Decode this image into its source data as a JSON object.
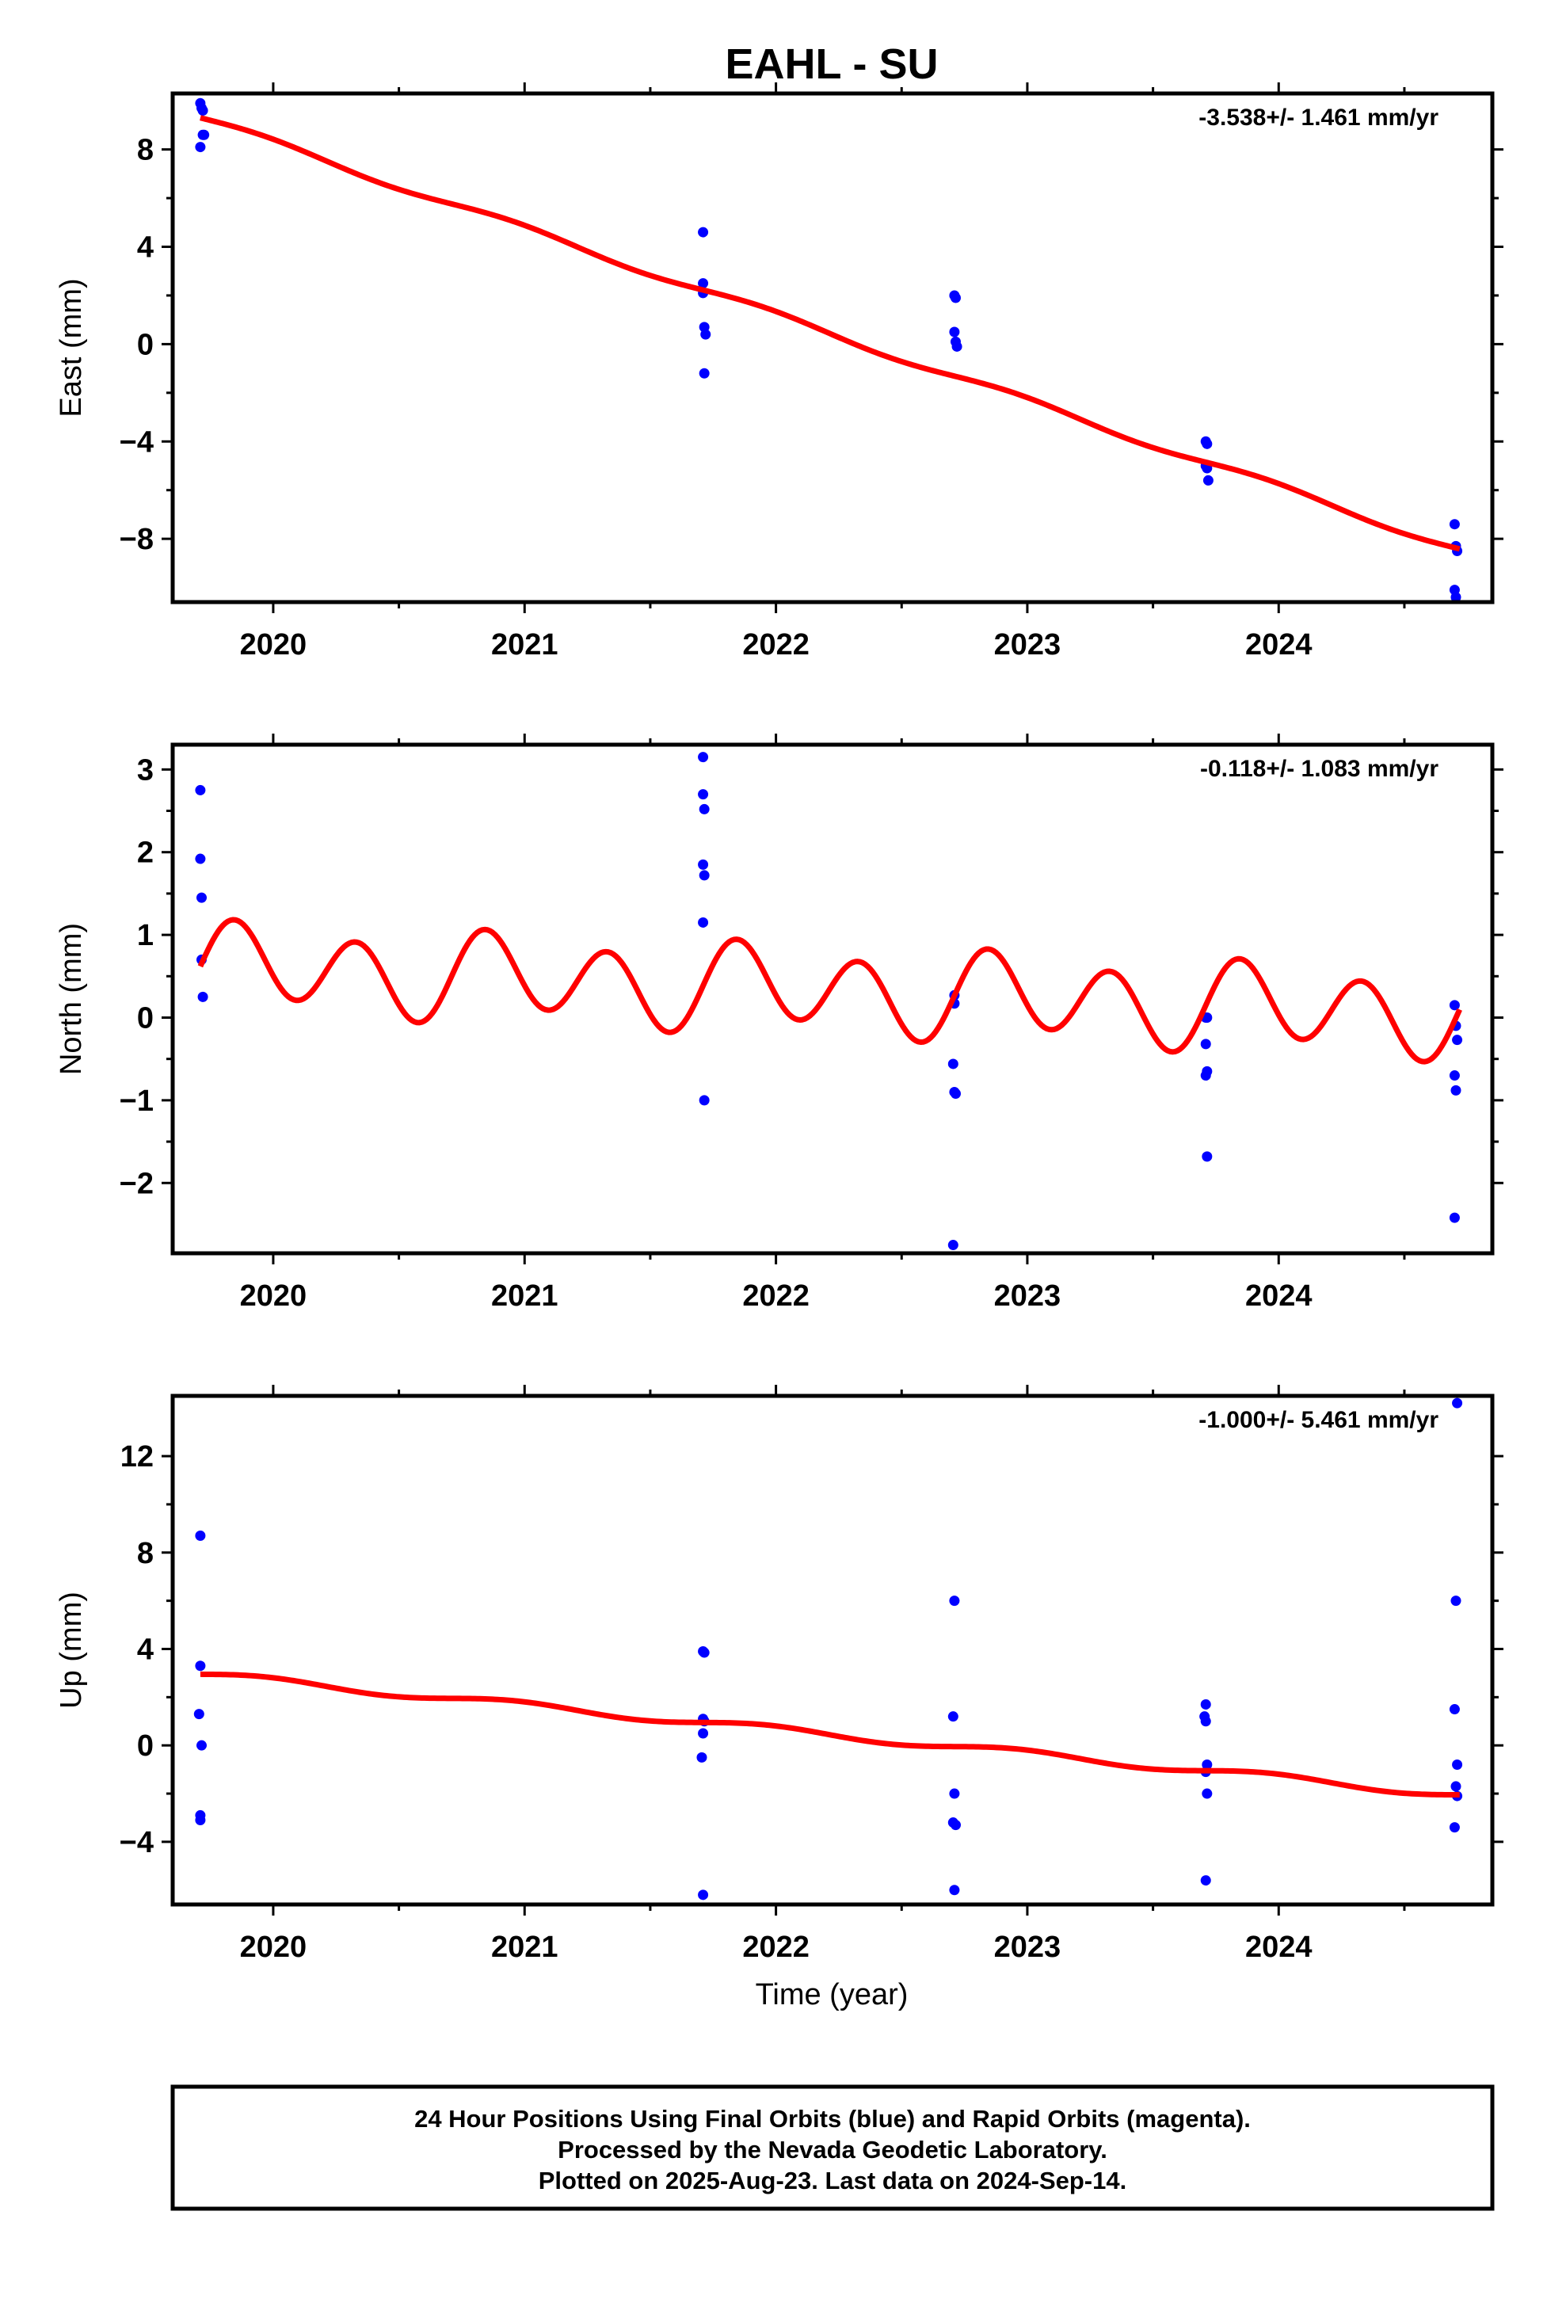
{
  "title": "EAHL - SU",
  "xlabel": "Time (year)",
  "footer": [
    "24 Hour Positions Using Final Orbits (blue) and Rapid Orbits (magenta).",
    "Processed by the Nevada Geodetic Laboratory.",
    "Plotted on 2025-Aug-23. Last data on 2024-Sep-14."
  ],
  "colors": {
    "final_orbits": "#0000ff",
    "rapid_orbits": "#ff00ff",
    "model": "#ff0000"
  },
  "chart_data": [
    {
      "type": "scatter",
      "ylabel": "East (mm)",
      "rate": "-3.538+/- 1.461 mm/yr",
      "xlim": [
        2019.6,
        2024.85
      ],
      "ylim": [
        -10.6,
        10.3
      ],
      "xticks": [
        2020,
        2021,
        2022,
        2023,
        2024
      ],
      "yticks": [
        -8,
        -4,
        0,
        4,
        8
      ],
      "ytick_labels": [
        "−8",
        "−4",
        "0",
        "4",
        "8"
      ],
      "points": [
        [
          2019.71,
          9.9
        ],
        [
          2019.715,
          9.7
        ],
        [
          2019.72,
          9.6
        ],
        [
          2019.71,
          8.1
        ],
        [
          2019.72,
          8.6
        ],
        [
          2019.725,
          8.6
        ],
        [
          2021.71,
          4.6
        ],
        [
          2021.71,
          2.5
        ],
        [
          2021.71,
          2.1
        ],
        [
          2021.715,
          0.7
        ],
        [
          2021.72,
          0.4
        ],
        [
          2021.715,
          -1.2
        ],
        [
          2022.71,
          2.0
        ],
        [
          2022.715,
          1.9
        ],
        [
          2022.71,
          0.5
        ],
        [
          2022.715,
          0.1
        ],
        [
          2022.72,
          -0.1
        ],
        [
          2023.71,
          -4.0
        ],
        [
          2023.715,
          -4.1
        ],
        [
          2023.71,
          -5.0
        ],
        [
          2023.715,
          -5.1
        ],
        [
          2023.72,
          -5.6
        ],
        [
          2024.7,
          -7.4
        ],
        [
          2024.705,
          -8.3
        ],
        [
          2024.71,
          -8.5
        ],
        [
          2024.7,
          -10.1
        ],
        [
          2024.705,
          -10.4
        ]
      ],
      "model": {
        "start": 2019.71,
        "end": 2024.72,
        "y0": 9.3,
        "rate": -3.538,
        "sin1": 0.15,
        "cos1": 0.0,
        "sin2": 0.0,
        "cos2": 0.0
      }
    },
    {
      "type": "scatter",
      "ylabel": "North (mm)",
      "rate": "-0.118+/- 1.083 mm/yr",
      "xlim": [
        2019.6,
        2024.85
      ],
      "ylim": [
        -2.85,
        3.3
      ],
      "xticks": [
        2020,
        2021,
        2022,
        2023,
        2024
      ],
      "yticks": [
        -2,
        -1,
        0,
        1,
        2,
        3
      ],
      "ytick_labels": [
        "−2",
        "−1",
        "0",
        "1",
        "2",
        "3"
      ],
      "points": [
        [
          2019.71,
          2.75
        ],
        [
          2019.71,
          1.92
        ],
        [
          2019.715,
          1.45
        ],
        [
          2019.715,
          0.7
        ],
        [
          2019.72,
          0.25
        ],
        [
          2021.71,
          3.15
        ],
        [
          2021.71,
          2.7
        ],
        [
          2021.715,
          2.52
        ],
        [
          2021.71,
          1.85
        ],
        [
          2021.715,
          1.72
        ],
        [
          2021.71,
          1.15
        ],
        [
          2021.715,
          -1.0
        ],
        [
          2022.71,
          0.27
        ],
        [
          2022.71,
          0.17
        ],
        [
          2022.705,
          -0.56
        ],
        [
          2022.71,
          -0.9
        ],
        [
          2022.715,
          -0.92
        ],
        [
          2022.705,
          -2.75
        ],
        [
          2023.71,
          0.0
        ],
        [
          2023.715,
          0.0
        ],
        [
          2023.71,
          -0.32
        ],
        [
          2023.715,
          -0.65
        ],
        [
          2023.71,
          -0.7
        ],
        [
          2023.715,
          -1.68
        ],
        [
          2024.7,
          0.15
        ],
        [
          2024.705,
          -0.1
        ],
        [
          2024.71,
          -0.27
        ],
        [
          2024.7,
          -0.7
        ],
        [
          2024.705,
          -0.88
        ],
        [
          2024.7,
          -2.42
        ]
      ],
      "model": {
        "start": 2019.71,
        "end": 2024.72,
        "y0": 0.62,
        "rate": -0.118,
        "sin1": 0.15,
        "cos1": 0.0,
        "sin2": 0.47,
        "cos2": 0.0
      }
    },
    {
      "type": "scatter",
      "ylabel": "Up (mm)",
      "rate": "-1.000+/- 5.461 mm/yr",
      "xlim": [
        2019.6,
        2024.85
      ],
      "ylim": [
        -6.6,
        14.5
      ],
      "xticks": [
        2020,
        2021,
        2022,
        2023,
        2024
      ],
      "yticks": [
        -4,
        0,
        4,
        8,
        12
      ],
      "ytick_labels": [
        "−4",
        "0",
        "4",
        "8",
        "12"
      ],
      "points": [
        [
          2019.71,
          8.7
        ],
        [
          2019.71,
          3.3
        ],
        [
          2019.705,
          1.3
        ],
        [
          2019.715,
          0.0
        ],
        [
          2019.71,
          -2.9
        ],
        [
          2019.71,
          -3.1
        ],
        [
          2021.71,
          3.9
        ],
        [
          2021.715,
          3.85
        ],
        [
          2021.71,
          1.1
        ],
        [
          2021.715,
          1.0
        ],
        [
          2021.71,
          0.5
        ],
        [
          2021.705,
          -0.5
        ],
        [
          2021.71,
          -6.2
        ],
        [
          2022.71,
          6.0
        ],
        [
          2022.705,
          1.2
        ],
        [
          2022.71,
          -2.0
        ],
        [
          2022.705,
          -3.2
        ],
        [
          2022.715,
          -3.3
        ],
        [
          2022.71,
          -6.0
        ],
        [
          2023.71,
          1.7
        ],
        [
          2023.705,
          1.2
        ],
        [
          2023.71,
          1.0
        ],
        [
          2023.715,
          -0.8
        ],
        [
          2023.71,
          -1.1
        ],
        [
          2023.715,
          -2.0
        ],
        [
          2023.71,
          -5.6
        ],
        [
          2024.71,
          14.2
        ],
        [
          2024.705,
          6.0
        ],
        [
          2024.7,
          1.5
        ],
        [
          2024.71,
          -0.8
        ],
        [
          2024.705,
          -1.7
        ],
        [
          2024.71,
          -2.1
        ],
        [
          2024.7,
          -3.4
        ]
      ],
      "model": {
        "start": 2019.71,
        "end": 2024.72,
        "y0": 2.95,
        "rate": -1.0,
        "sin1": 0.15,
        "cos1": 0.0,
        "sin2": 0.0,
        "cos2": 0.0
      }
    }
  ]
}
